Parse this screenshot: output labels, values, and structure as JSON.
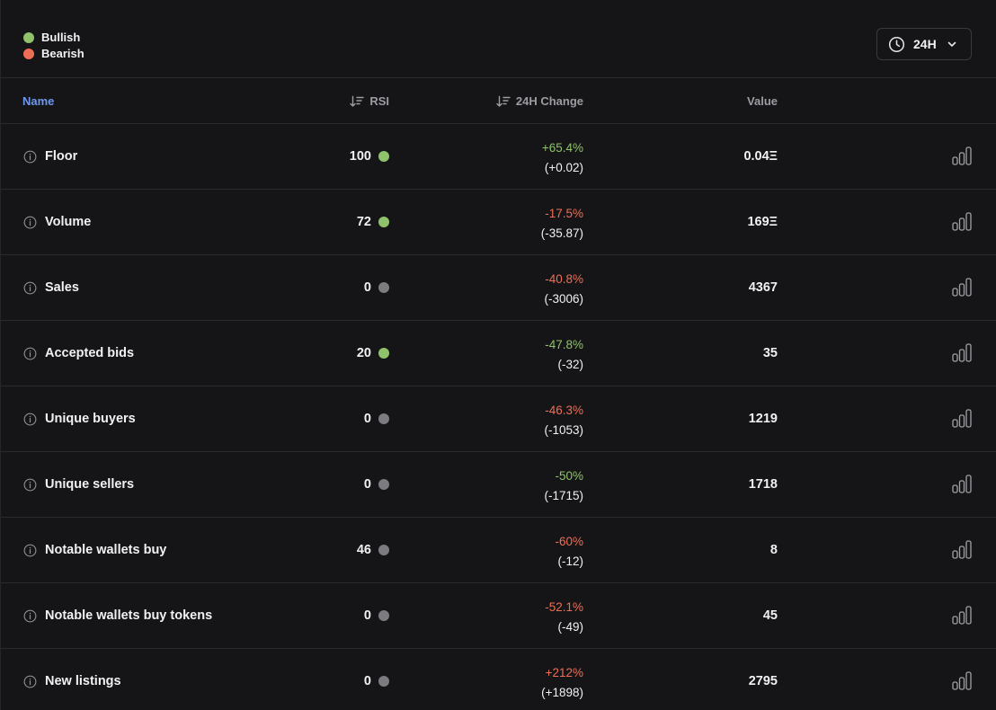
{
  "colors": {
    "bullish": "#8fc26a",
    "bearish": "#ee6e55",
    "neutral": "#7b7b80",
    "accent": "#6e98f0"
  },
  "legend": {
    "bullish_label": "Bullish",
    "bearish_label": "Bearish"
  },
  "timeframe": {
    "label": "24H",
    "icon": "clock-icon"
  },
  "table": {
    "columns": {
      "name": "Name",
      "rsi": "RSI",
      "change": "24H Change",
      "value": "Value"
    },
    "rows": [
      {
        "name": "Floor",
        "rsi": "100",
        "rsi_status": "bullish",
        "change_pct": "+65.4%",
        "change_dir": "bullish",
        "change_abs": "(+0.02)",
        "value": "0.04Ξ"
      },
      {
        "name": "Volume",
        "rsi": "72",
        "rsi_status": "bullish",
        "change_pct": "-17.5%",
        "change_dir": "bearish",
        "change_abs": "(-35.87)",
        "value": "169Ξ"
      },
      {
        "name": "Sales",
        "rsi": "0",
        "rsi_status": "neutral",
        "change_pct": "-40.8%",
        "change_dir": "bearish",
        "change_abs": "(-3006)",
        "value": "4367"
      },
      {
        "name": "Accepted bids",
        "rsi": "20",
        "rsi_status": "bullish",
        "change_pct": "-47.8%",
        "change_dir": "bullish",
        "change_abs": "(-32)",
        "value": "35"
      },
      {
        "name": "Unique buyers",
        "rsi": "0",
        "rsi_status": "neutral",
        "change_pct": "-46.3%",
        "change_dir": "bearish",
        "change_abs": "(-1053)",
        "value": "1219"
      },
      {
        "name": "Unique sellers",
        "rsi": "0",
        "rsi_status": "neutral",
        "change_pct": "-50%",
        "change_dir": "bullish",
        "change_abs": "(-1715)",
        "value": "1718"
      },
      {
        "name": "Notable wallets buy",
        "rsi": "46",
        "rsi_status": "neutral",
        "change_pct": "-60%",
        "change_dir": "bearish",
        "change_abs": "(-12)",
        "value": "8"
      },
      {
        "name": "Notable wallets buy tokens",
        "rsi": "0",
        "rsi_status": "neutral",
        "change_pct": "-52.1%",
        "change_dir": "bearish",
        "change_abs": "(-49)",
        "value": "45"
      },
      {
        "name": "New listings",
        "rsi": "0",
        "rsi_status": "neutral",
        "change_pct": "+212%",
        "change_dir": "bearish",
        "change_abs": "(+1898)",
        "value": "2795"
      }
    ]
  }
}
